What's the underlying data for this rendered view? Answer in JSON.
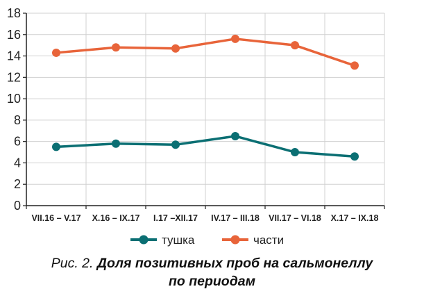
{
  "chart_data": {
    "type": "line",
    "categories": [
      "VII.16 – V.17",
      "X.16 – IX.17",
      "I.17 –XII.17",
      "IV.17 – III.18",
      "VII.17 – VI.18",
      "X.17 – IX.18"
    ],
    "series": [
      {
        "name": "тушка",
        "color": "#0b6f73",
        "values": [
          5.5,
          5.8,
          5.7,
          6.5,
          5.0,
          4.6
        ]
      },
      {
        "name": "части",
        "color": "#e8643a",
        "values": [
          14.3,
          14.8,
          14.7,
          15.6,
          15.0,
          13.1
        ]
      }
    ],
    "ylim": [
      0,
      18
    ],
    "yticks": [
      0,
      2,
      4,
      6,
      8,
      10,
      12,
      14,
      16,
      18
    ],
    "grid": true,
    "legend": "bottom-center",
    "xlabel": "",
    "ylabel": ""
  },
  "caption": {
    "prefix": "Рис. 2. ",
    "title_line1": "Доля позитивных проб на сальмонеллу",
    "title_line2": "по периодам"
  }
}
